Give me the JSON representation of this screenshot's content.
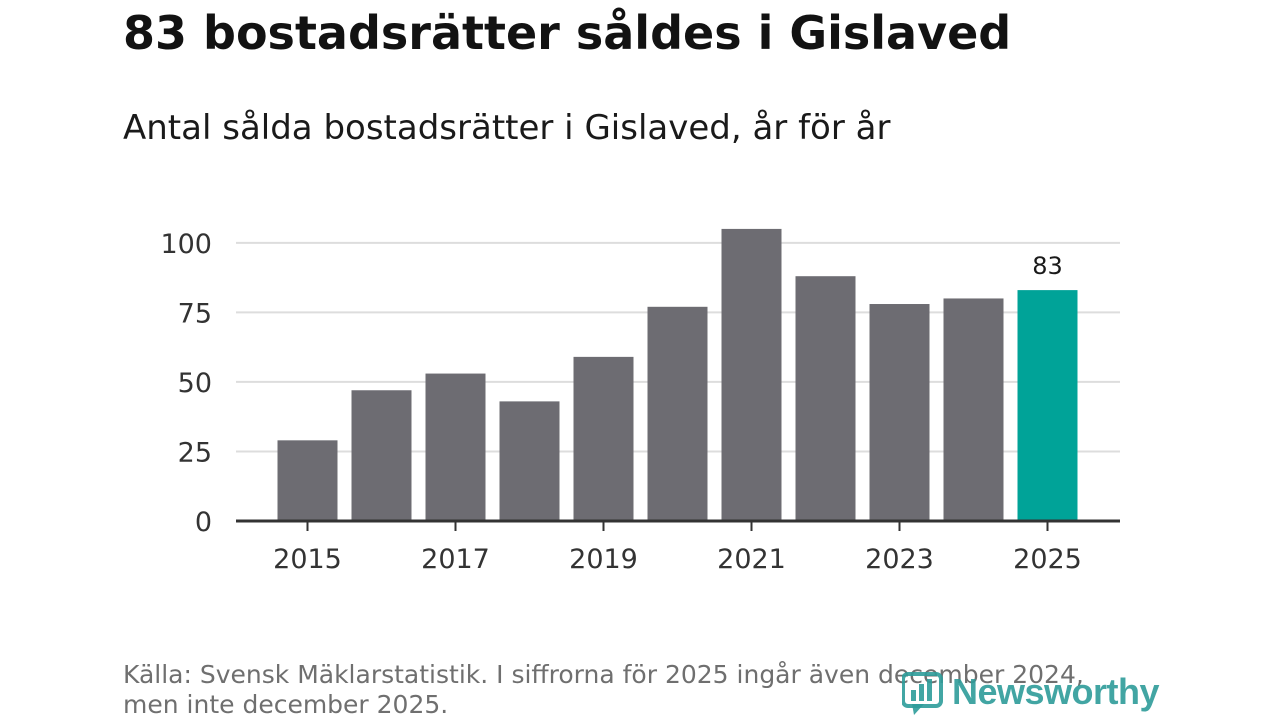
{
  "chart_data": {
    "type": "bar",
    "title": "83 bostadsrätter såldes i Gislaved",
    "subtitle": "Antal sålda bostadsrätter i Gislaved, år för år",
    "categories": [
      "2015",
      "2016",
      "2017",
      "2018",
      "2019",
      "2020",
      "2021",
      "2022",
      "2023",
      "2024",
      "2025"
    ],
    "values": [
      29,
      47,
      53,
      43,
      59,
      77,
      105,
      88,
      78,
      80,
      83
    ],
    "x_tick_labels": [
      "2015",
      "2017",
      "2019",
      "2021",
      "2023",
      "2025"
    ],
    "y_ticks": [
      0,
      25,
      50,
      75,
      100
    ],
    "ylim": [
      0,
      110
    ],
    "xlabel": "",
    "ylabel": "",
    "grid": true,
    "highlight_index": 10,
    "highlight_label": "83",
    "colors": {
      "bar": "#6d6c72",
      "highlight": "#00a398",
      "grid": "#dddddd",
      "axis": "#333333"
    }
  },
  "source_text": "Källa: Svensk Mäklarstatistik. I siffrorna för 2025 ingår även december 2024, men inte december 2025.",
  "logo": {
    "text": "Newsworthy",
    "icon": "newsworthy-chart-icon",
    "color": "#2e9c9a"
  }
}
